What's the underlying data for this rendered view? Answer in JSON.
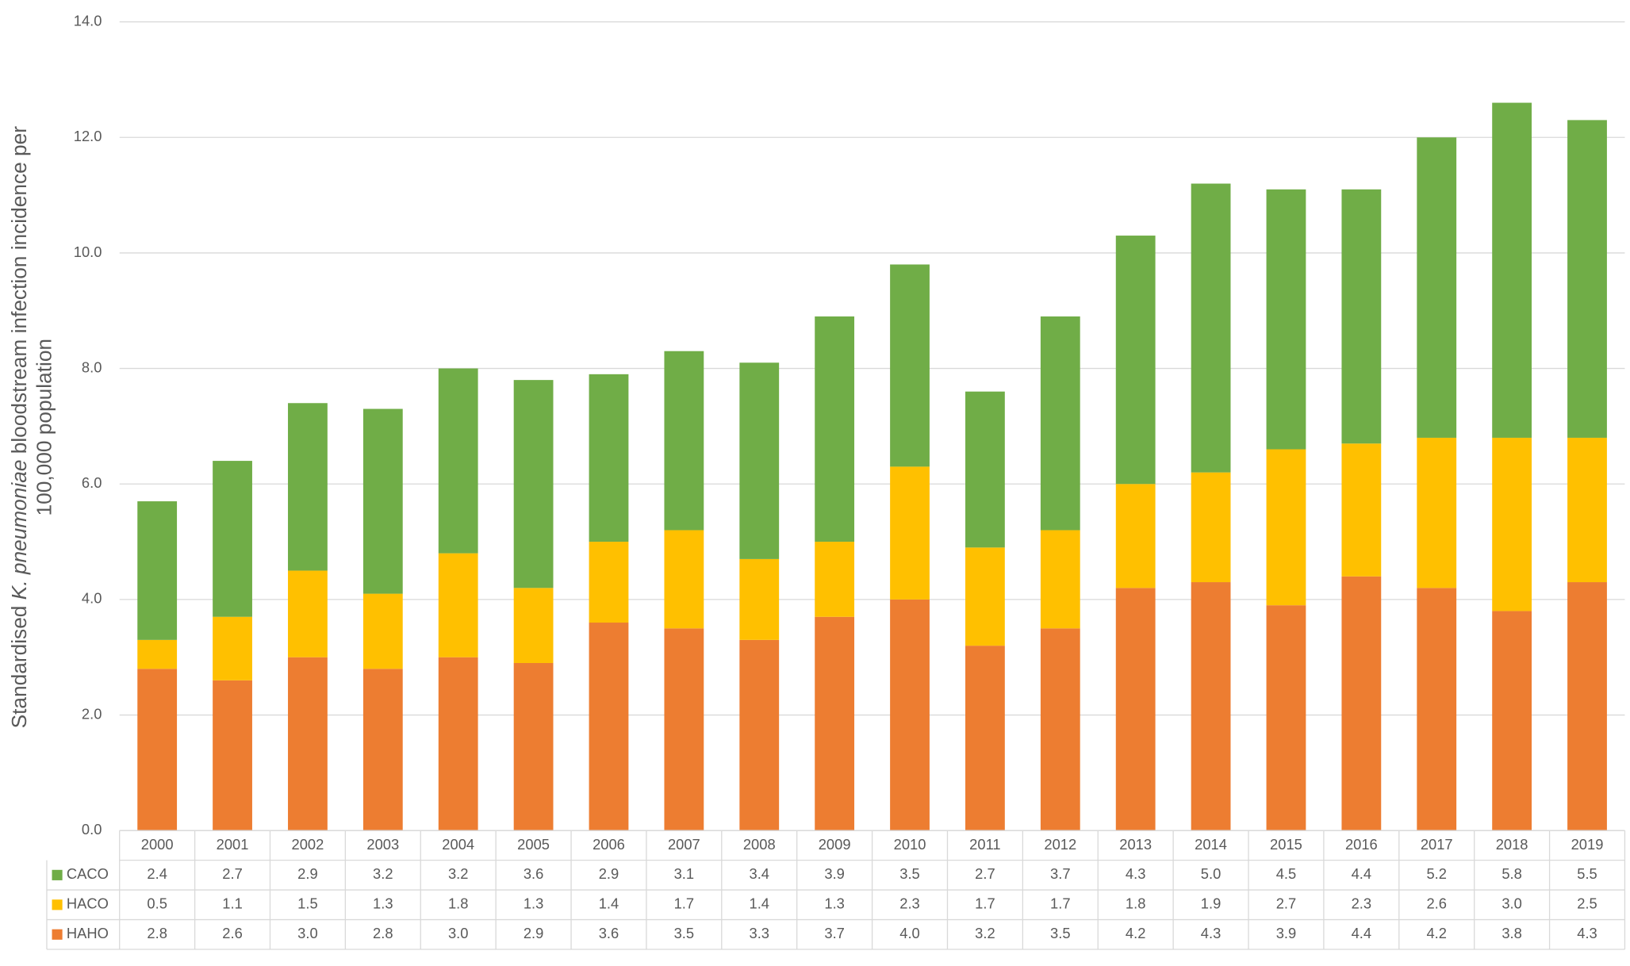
{
  "chart_data": {
    "type": "stacked-bar",
    "ylabel_lines": [
      [
        "Standardised",
        "K. pneumoniae",
        "bloodstream infection incidence per"
      ],
      [
        "100,000 population"
      ]
    ],
    "categories": [
      "2000",
      "2001",
      "2002",
      "2003",
      "2004",
      "2005",
      "2006",
      "2007",
      "2008",
      "2009",
      "2010",
      "2011",
      "2012",
      "2013",
      "2014",
      "2015",
      "2016",
      "2017",
      "2018",
      "2019"
    ],
    "series": [
      {
        "name": "HAHO",
        "color": "#ed7d31",
        "values": [
          2.8,
          2.6,
          3.0,
          2.8,
          3.0,
          2.9,
          3.6,
          3.5,
          3.3,
          3.7,
          4.0,
          3.2,
          3.5,
          4.2,
          4.3,
          3.9,
          4.4,
          4.2,
          3.8,
          4.3
        ],
        "value_labels": [
          "2.8",
          "2.6",
          "3.0",
          "2.8",
          "3.0",
          "2.9",
          "3.6",
          "3.5",
          "3.3",
          "3.7",
          "4.0",
          "3.2",
          "3.5",
          "4.2",
          "4.3",
          "3.9",
          "4.4",
          "4.2",
          "3.8",
          "4.3"
        ]
      },
      {
        "name": "HACO",
        "color": "#ffc000",
        "values": [
          0.5,
          1.1,
          1.5,
          1.3,
          1.8,
          1.3,
          1.4,
          1.7,
          1.4,
          1.3,
          2.3,
          1.7,
          1.7,
          1.8,
          1.9,
          2.7,
          2.3,
          2.6,
          3.0,
          2.5
        ],
        "value_labels": [
          "0.5",
          "1.1",
          "1.5",
          "1.3",
          "1.8",
          "1.3",
          "1.4",
          "1.7",
          "1.4",
          "1.3",
          "2.3",
          "1.7",
          "1.7",
          "1.8",
          "1.9",
          "2.7",
          "2.3",
          "2.6",
          "3.0",
          "2.5"
        ]
      },
      {
        "name": "CACO",
        "color": "#70ad47",
        "values": [
          2.4,
          2.7,
          2.9,
          3.2,
          3.2,
          3.6,
          2.9,
          3.1,
          3.4,
          3.9,
          3.5,
          2.7,
          3.7,
          4.3,
          5.0,
          4.5,
          4.4,
          5.2,
          5.8,
          5.5
        ],
        "value_labels": [
          "2.4",
          "2.7",
          "2.9",
          "3.2",
          "3.2",
          "3.6",
          "2.9",
          "3.1",
          "3.4",
          "3.9",
          "3.5",
          "2.7",
          "3.7",
          "4.3",
          "5.0",
          "4.5",
          "4.4",
          "5.2",
          "5.8",
          "5.5"
        ]
      }
    ],
    "ylim": [
      0,
      14
    ],
    "yticks": [
      {
        "value": 0,
        "label": "0.0"
      },
      {
        "value": 2,
        "label": "2.0"
      },
      {
        "value": 4,
        "label": "4.0"
      },
      {
        "value": 6,
        "label": "6.0"
      },
      {
        "value": 8,
        "label": "8.0"
      },
      {
        "value": 10,
        "label": "10.0"
      },
      {
        "value": 12,
        "label": "12.0"
      },
      {
        "value": 14,
        "label": "14.0"
      }
    ],
    "grid": true
  }
}
